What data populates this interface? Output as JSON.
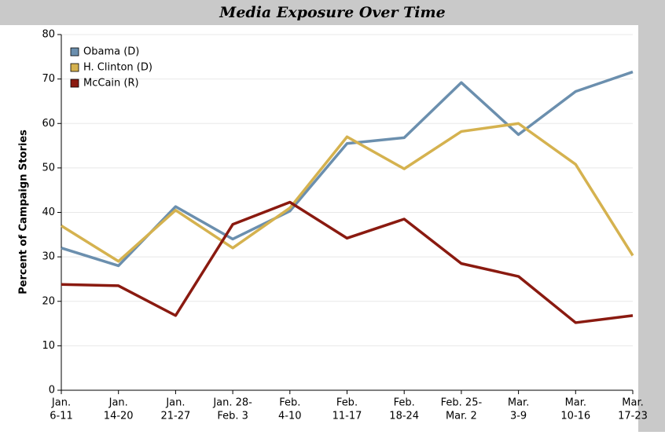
{
  "chart_data": {
    "type": "line",
    "title": "Media Exposure Over Time",
    "y_label": "Percent of Campaign Stories",
    "categories": [
      [
        "Jan.",
        "6-11"
      ],
      [
        "Jan.",
        "14-20"
      ],
      [
        "Jan.",
        "21-27"
      ],
      [
        "Jan. 28-",
        "Feb. 3"
      ],
      [
        "Feb.",
        "4-10"
      ],
      [
        "Feb.",
        "11-17"
      ],
      [
        "Feb.",
        "18-24"
      ],
      [
        "Feb. 25-",
        "Mar. 2"
      ],
      [
        "Mar.",
        "3-9"
      ],
      [
        "Mar.",
        "10-16"
      ],
      [
        "Mar.",
        "17-23"
      ]
    ],
    "series": [
      {
        "name": "Obama (D)",
        "color": "#6b8fae",
        "values": [
          32,
          28,
          41.3,
          34,
          40.3,
          55.5,
          56.8,
          69.2,
          57.5,
          67.2,
          71.6
        ]
      },
      {
        "name": "H. Clinton (D)",
        "color": "#d5b24f",
        "values": [
          37,
          29,
          40.5,
          32,
          41,
          57,
          49.8,
          58.2,
          60,
          50.8,
          30.3
        ]
      },
      {
        "name": "McCain (R)",
        "color": "#8a1a10",
        "values": [
          23.8,
          23.5,
          16.8,
          37.3,
          42.3,
          34.2,
          38.5,
          28.5,
          25.6,
          15.2,
          16.8
        ]
      }
    ],
    "ylim": [
      0,
      80
    ],
    "yticks": [
      0,
      10,
      20,
      30,
      40,
      50,
      60,
      70,
      80
    ],
    "grid": true,
    "legend": "top-left"
  }
}
